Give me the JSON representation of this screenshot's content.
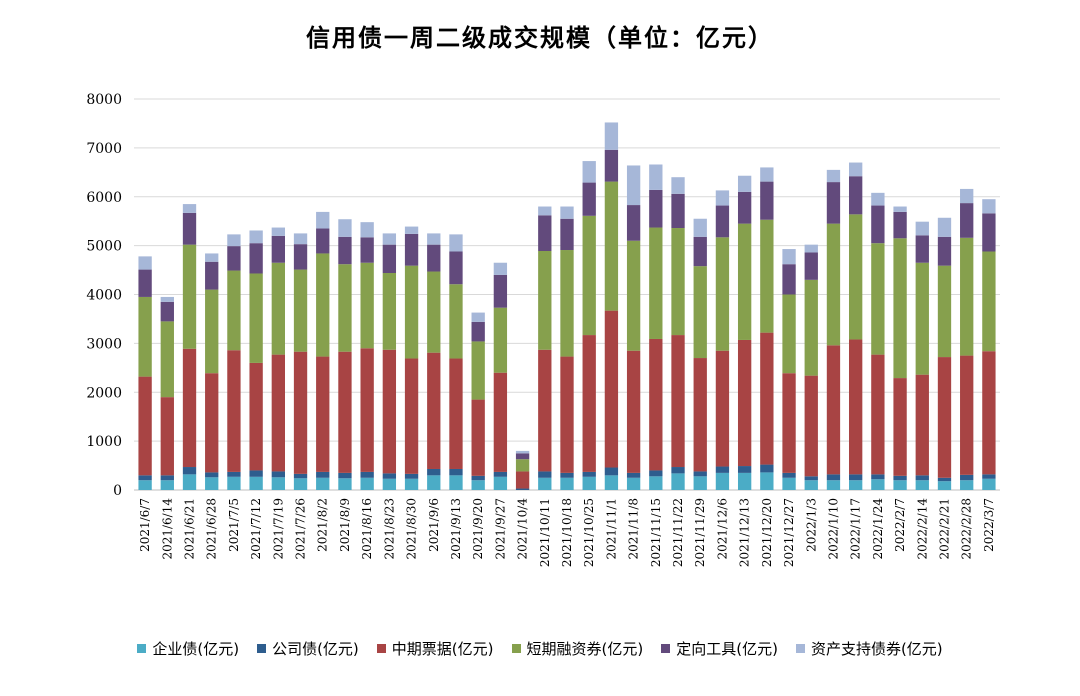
{
  "chart_data": {
    "type": "bar",
    "stacked": true,
    "title": "信用债一周二级成交规模（单位：亿元）",
    "ylim": [
      0,
      8000
    ],
    "yticks": [
      0,
      1000,
      2000,
      3000,
      4000,
      5000,
      6000,
      7000,
      8000
    ],
    "grid": true,
    "legend_position": "bottom",
    "categories": [
      "2021/6/7",
      "2021/6/14",
      "2021/6/21",
      "2021/6/28",
      "2021/7/5",
      "2021/7/12",
      "2021/7/19",
      "2021/7/26",
      "2021/8/2",
      "2021/8/9",
      "2021/8/16",
      "2021/8/23",
      "2021/8/30",
      "2021/9/6",
      "2021/9/13",
      "2021/9/20",
      "2021/9/27",
      "2021/10/4",
      "2021/10/11",
      "2021/10/18",
      "2021/10/25",
      "2021/11/1",
      "2021/11/8",
      "2021/11/15",
      "2021/11/22",
      "2021/11/29",
      "2021/12/6",
      "2021/12/13",
      "2021/12/20",
      "2021/12/27",
      "2022/1/3",
      "2022/1/10",
      "2022/1/17",
      "2022/1/24",
      "2022/2/7",
      "2022/2/14",
      "2022/2/21",
      "2022/2/28",
      "2022/3/7"
    ],
    "series": [
      {
        "name": "企业债(亿元)",
        "color": "#4bacc6",
        "values": [
          200,
          200,
          320,
          260,
          270,
          270,
          260,
          240,
          250,
          240,
          250,
          230,
          230,
          300,
          300,
          200,
          270,
          0,
          250,
          250,
          270,
          300,
          250,
          280,
          340,
          280,
          350,
          350,
          360,
          250,
          200,
          200,
          200,
          220,
          200,
          200,
          180,
          200,
          230
        ]
      },
      {
        "name": "公司债(亿元)",
        "color": "#2e5d8e",
        "values": [
          100,
          100,
          150,
          100,
          100,
          130,
          120,
          90,
          120,
          110,
          120,
          110,
          100,
          130,
          130,
          90,
          100,
          30,
          130,
          100,
          100,
          160,
          100,
          120,
          130,
          100,
          130,
          140,
          160,
          100,
          80,
          120,
          120,
          100,
          90,
          100,
          70,
          110,
          90
        ]
      },
      {
        "name": "中期票据(亿元)",
        "color": "#a84444",
        "values": [
          2020,
          1600,
          2420,
          2030,
          2490,
          2200,
          2390,
          2500,
          2360,
          2480,
          2530,
          2530,
          2360,
          2380,
          2260,
          1560,
          2030,
          350,
          2490,
          2380,
          2800,
          3210,
          2500,
          2690,
          2700,
          2320,
          2370,
          2580,
          2700,
          2040,
          2060,
          2640,
          2760,
          2450,
          2000,
          2060,
          2470,
          2440,
          2520
        ]
      },
      {
        "name": "短期融资券(亿元)",
        "color": "#86a04d",
        "values": [
          1630,
          1550,
          2130,
          1710,
          1630,
          1830,
          1880,
          1680,
          2110,
          1790,
          1750,
          1570,
          1900,
          1660,
          1520,
          1190,
          1330,
          250,
          2020,
          2180,
          2440,
          2640,
          2250,
          2280,
          2190,
          1880,
          2320,
          2380,
          2310,
          1610,
          1960,
          2490,
          2560,
          2280,
          2860,
          2290,
          1870,
          2410,
          2040
        ]
      },
      {
        "name": "定向工具(亿元)",
        "color": "#624a7c",
        "values": [
          560,
          400,
          650,
          570,
          500,
          620,
          550,
          520,
          510,
          560,
          520,
          580,
          650,
          550,
          670,
          400,
          670,
          120,
          730,
          640,
          680,
          650,
          730,
          770,
          700,
          600,
          650,
          650,
          780,
          620,
          560,
          850,
          780,
          770,
          540,
          560,
          590,
          710,
          780
        ]
      },
      {
        "name": "资产支持债券(亿元)",
        "color": "#a6b7d8",
        "values": [
          270,
          100,
          180,
          170,
          240,
          260,
          170,
          220,
          340,
          360,
          310,
          230,
          150,
          230,
          350,
          190,
          250,
          50,
          180,
          250,
          440,
          560,
          810,
          520,
          340,
          370,
          310,
          330,
          290,
          310,
          160,
          250,
          280,
          260,
          110,
          280,
          390,
          290,
          290
        ]
      }
    ]
  }
}
